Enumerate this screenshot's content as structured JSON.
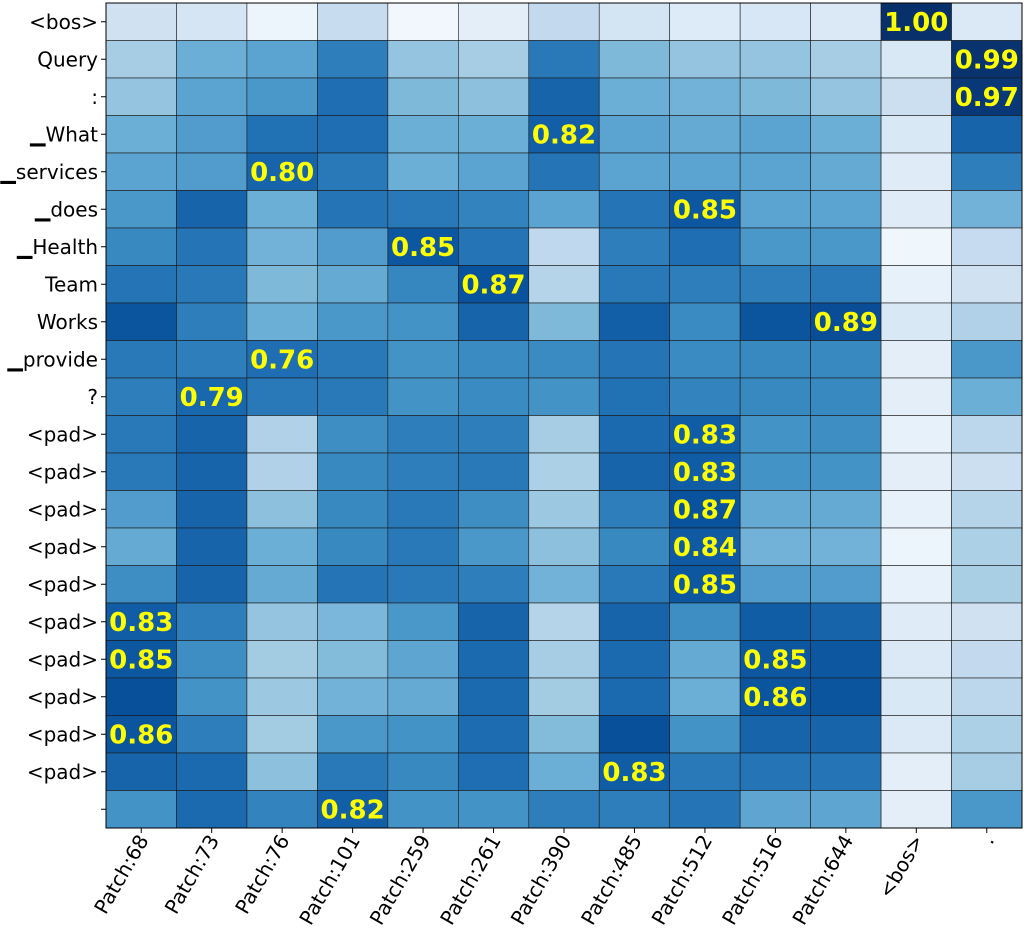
{
  "chart_data": {
    "type": "heatmap",
    "title": "",
    "xlabel": "",
    "ylabel": "",
    "colormap": "Blues",
    "vmin": 0,
    "vmax": 1,
    "x_labels": [
      "Patch:68",
      "Patch:73",
      "Patch:76",
      "Patch:101",
      "Patch:259",
      "Patch:261",
      "Patch:390",
      "Patch:485",
      "Patch:512",
      "Patch:516",
      "Patch:644",
      "<bos>",
      "."
    ],
    "y_labels": [
      "<bos>",
      "Query",
      ":",
      "▁What",
      "▁services",
      "▁does",
      "▁Health",
      "Team",
      "Works",
      "▁provide",
      "?",
      "<pad>",
      "<pad>",
      "<pad>",
      "<pad>",
      "<pad>",
      "<pad>",
      "<pad>",
      "<pad>",
      "<pad>",
      "<pad>",
      ""
    ],
    "values": [
      [
        0.2,
        0.17,
        0.05,
        0.24,
        0.03,
        0.1,
        0.26,
        0.18,
        0.13,
        0.16,
        0.14,
        1.0,
        0.14
      ],
      [
        0.35,
        0.5,
        0.55,
        0.7,
        0.4,
        0.35,
        0.72,
        0.45,
        0.4,
        0.4,
        0.35,
        0.15,
        0.99
      ],
      [
        0.4,
        0.55,
        0.6,
        0.76,
        0.45,
        0.42,
        0.8,
        0.5,
        0.48,
        0.45,
        0.4,
        0.22,
        0.97
      ],
      [
        0.5,
        0.58,
        0.75,
        0.76,
        0.5,
        0.5,
        0.82,
        0.55,
        0.52,
        0.55,
        0.5,
        0.15,
        0.8
      ],
      [
        0.55,
        0.58,
        0.8,
        0.72,
        0.5,
        0.55,
        0.74,
        0.55,
        0.55,
        0.55,
        0.52,
        0.12,
        0.7
      ],
      [
        0.6,
        0.8,
        0.5,
        0.74,
        0.72,
        0.68,
        0.55,
        0.74,
        0.85,
        0.55,
        0.55,
        0.12,
        0.48
      ],
      [
        0.66,
        0.74,
        0.48,
        0.58,
        0.85,
        0.74,
        0.27,
        0.7,
        0.76,
        0.6,
        0.6,
        0.04,
        0.25
      ],
      [
        0.74,
        0.72,
        0.45,
        0.52,
        0.67,
        0.87,
        0.3,
        0.72,
        0.7,
        0.7,
        0.72,
        0.08,
        0.2
      ],
      [
        0.86,
        0.7,
        0.5,
        0.6,
        0.62,
        0.8,
        0.45,
        0.82,
        0.65,
        0.86,
        0.89,
        0.15,
        0.32
      ],
      [
        0.72,
        0.7,
        0.76,
        0.72,
        0.62,
        0.65,
        0.65,
        0.74,
        0.65,
        0.66,
        0.66,
        0.1,
        0.6
      ],
      [
        0.7,
        0.79,
        0.72,
        0.72,
        0.62,
        0.65,
        0.62,
        0.75,
        0.68,
        0.66,
        0.66,
        0.1,
        0.5
      ],
      [
        0.72,
        0.8,
        0.32,
        0.64,
        0.7,
        0.7,
        0.35,
        0.78,
        0.83,
        0.62,
        0.64,
        0.08,
        0.28
      ],
      [
        0.72,
        0.8,
        0.32,
        0.66,
        0.7,
        0.72,
        0.33,
        0.8,
        0.83,
        0.62,
        0.62,
        0.1,
        0.22
      ],
      [
        0.58,
        0.8,
        0.42,
        0.66,
        0.72,
        0.64,
        0.38,
        0.7,
        0.87,
        0.52,
        0.52,
        0.08,
        0.3
      ],
      [
        0.52,
        0.8,
        0.5,
        0.66,
        0.72,
        0.6,
        0.42,
        0.66,
        0.84,
        0.48,
        0.48,
        0.05,
        0.33
      ],
      [
        0.64,
        0.8,
        0.52,
        0.74,
        0.72,
        0.7,
        0.48,
        0.72,
        0.85,
        0.58,
        0.58,
        0.08,
        0.34
      ],
      [
        0.83,
        0.7,
        0.4,
        0.46,
        0.6,
        0.8,
        0.3,
        0.8,
        0.64,
        0.83,
        0.8,
        0.12,
        0.2
      ],
      [
        0.85,
        0.64,
        0.36,
        0.44,
        0.54,
        0.78,
        0.35,
        0.78,
        0.52,
        0.85,
        0.85,
        0.14,
        0.26
      ],
      [
        0.88,
        0.62,
        0.38,
        0.48,
        0.52,
        0.78,
        0.36,
        0.78,
        0.5,
        0.86,
        0.86,
        0.15,
        0.28
      ],
      [
        0.86,
        0.7,
        0.36,
        0.6,
        0.62,
        0.77,
        0.44,
        0.88,
        0.62,
        0.8,
        0.8,
        0.14,
        0.33
      ],
      [
        0.8,
        0.78,
        0.42,
        0.72,
        0.66,
        0.76,
        0.5,
        0.83,
        0.72,
        0.74,
        0.74,
        0.1,
        0.35
      ],
      [
        0.62,
        0.78,
        0.68,
        0.82,
        0.62,
        0.62,
        0.7,
        0.7,
        0.74,
        0.54,
        0.54,
        0.1,
        0.6
      ]
    ],
    "annotations": [
      {
        "row": 0,
        "col": 11,
        "label": "1.00"
      },
      {
        "row": 1,
        "col": 12,
        "label": "0.99"
      },
      {
        "row": 2,
        "col": 12,
        "label": "0.97"
      },
      {
        "row": 3,
        "col": 6,
        "label": "0.82"
      },
      {
        "row": 4,
        "col": 2,
        "label": "0.80"
      },
      {
        "row": 5,
        "col": 8,
        "label": "0.85"
      },
      {
        "row": 6,
        "col": 4,
        "label": "0.85"
      },
      {
        "row": 7,
        "col": 5,
        "label": "0.87"
      },
      {
        "row": 8,
        "col": 10,
        "label": "0.89"
      },
      {
        "row": 9,
        "col": 2,
        "label": "0.76"
      },
      {
        "row": 10,
        "col": 1,
        "label": "0.79"
      },
      {
        "row": 11,
        "col": 8,
        "label": "0.83"
      },
      {
        "row": 12,
        "col": 8,
        "label": "0.83"
      },
      {
        "row": 13,
        "col": 8,
        "label": "0.87"
      },
      {
        "row": 14,
        "col": 8,
        "label": "0.84"
      },
      {
        "row": 15,
        "col": 8,
        "label": "0.85"
      },
      {
        "row": 16,
        "col": 0,
        "label": "0.83"
      },
      {
        "row": 17,
        "col": 0,
        "label": "0.85"
      },
      {
        "row": 17,
        "col": 9,
        "label": "0.85"
      },
      {
        "row": 18,
        "col": 9,
        "label": "0.86"
      },
      {
        "row": 19,
        "col": 0,
        "label": "0.86"
      },
      {
        "row": 20,
        "col": 7,
        "label": "0.83"
      },
      {
        "row": 21,
        "col": 3,
        "label": "0.82"
      }
    ],
    "annotation_color": "#ffff00"
  }
}
